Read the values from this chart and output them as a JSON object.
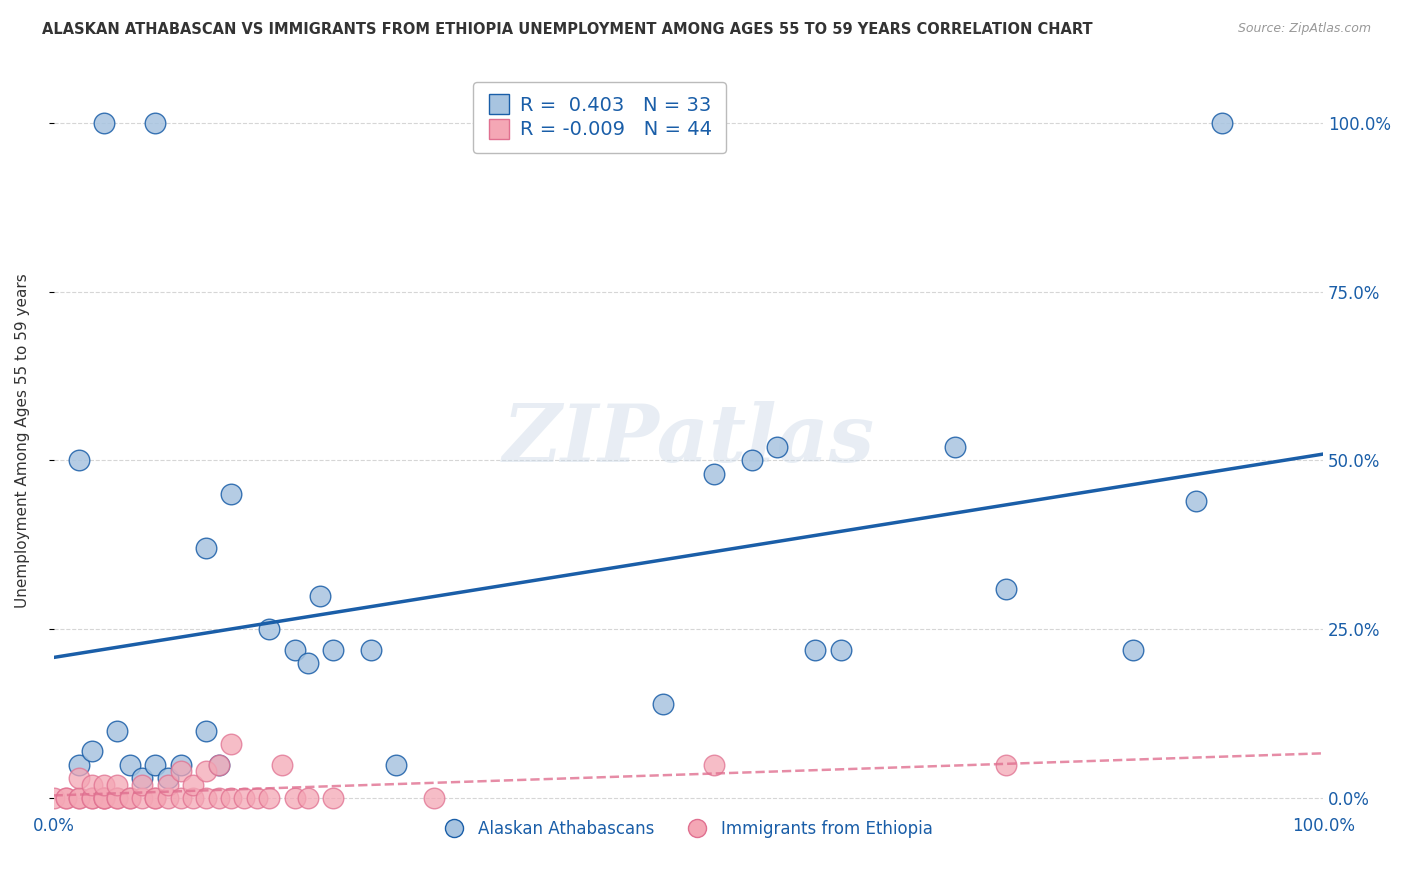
{
  "title": "ALASKAN ATHABASCAN VS IMMIGRANTS FROM ETHIOPIA UNEMPLOYMENT AMONG AGES 55 TO 59 YEARS CORRELATION CHART",
  "source": "Source: ZipAtlas.com",
  "ylabel": "Unemployment Among Ages 55 to 59 years",
  "legend_label_blue": "Alaskan Athabascans",
  "legend_label_pink": "Immigrants from Ethiopia",
  "R_blue": 0.403,
  "N_blue": 33,
  "R_pink": -0.009,
  "N_pink": 44,
  "blue_scatter_x": [
    0.04,
    0.08,
    0.02,
    0.12,
    0.14,
    0.17,
    0.19,
    0.2,
    0.21,
    0.22,
    0.02,
    0.03,
    0.05,
    0.06,
    0.07,
    0.08,
    0.09,
    0.1,
    0.12,
    0.13,
    0.48,
    0.52,
    0.55,
    0.57,
    0.6,
    0.62,
    0.71,
    0.75,
    0.85,
    0.9,
    0.92,
    0.25,
    0.27
  ],
  "blue_scatter_y": [
    1.0,
    1.0,
    0.5,
    0.37,
    0.45,
    0.25,
    0.22,
    0.2,
    0.3,
    0.22,
    0.05,
    0.07,
    0.1,
    0.05,
    0.03,
    0.05,
    0.03,
    0.05,
    0.1,
    0.05,
    0.14,
    0.48,
    0.5,
    0.52,
    0.22,
    0.22,
    0.52,
    0.31,
    0.22,
    0.44,
    1.0,
    0.22,
    0.05
  ],
  "pink_scatter_x": [
    0.0,
    0.01,
    0.01,
    0.02,
    0.02,
    0.02,
    0.03,
    0.03,
    0.03,
    0.04,
    0.04,
    0.04,
    0.04,
    0.05,
    0.05,
    0.05,
    0.06,
    0.06,
    0.07,
    0.07,
    0.08,
    0.08,
    0.09,
    0.09,
    0.1,
    0.1,
    0.11,
    0.11,
    0.12,
    0.12,
    0.13,
    0.13,
    0.14,
    0.14,
    0.15,
    0.16,
    0.17,
    0.18,
    0.19,
    0.2,
    0.22,
    0.3,
    0.52,
    0.75
  ],
  "pink_scatter_y": [
    0.0,
    0.0,
    0.0,
    0.0,
    0.0,
    0.03,
    0.0,
    0.0,
    0.02,
    0.0,
    0.0,
    0.0,
    0.02,
    0.0,
    0.0,
    0.02,
    0.0,
    0.0,
    0.0,
    0.02,
    0.0,
    0.0,
    0.0,
    0.02,
    0.0,
    0.04,
    0.0,
    0.02,
    0.0,
    0.04,
    0.0,
    0.05,
    0.0,
    0.08,
    0.0,
    0.0,
    0.0,
    0.05,
    0.0,
    0.0,
    0.0,
    0.0,
    0.05,
    0.05
  ],
  "blue_color": "#a8c4e0",
  "blue_line_color": "#1a5ea8",
  "pink_color": "#f4a7b5",
  "pink_line_color": "#e07090",
  "watermark_text": "ZIPatlas",
  "background_color": "#ffffff",
  "grid_color": "#cccccc",
  "yticks": [
    0.0,
    0.25,
    0.5,
    0.75,
    1.0
  ],
  "ytick_labels_right": [
    "0.0%",
    "25.0%",
    "50.0%",
    "75.0%",
    "100.0%"
  ],
  "xtick_labels": [
    "0.0%",
    "",
    "",
    "",
    "100.0%"
  ]
}
